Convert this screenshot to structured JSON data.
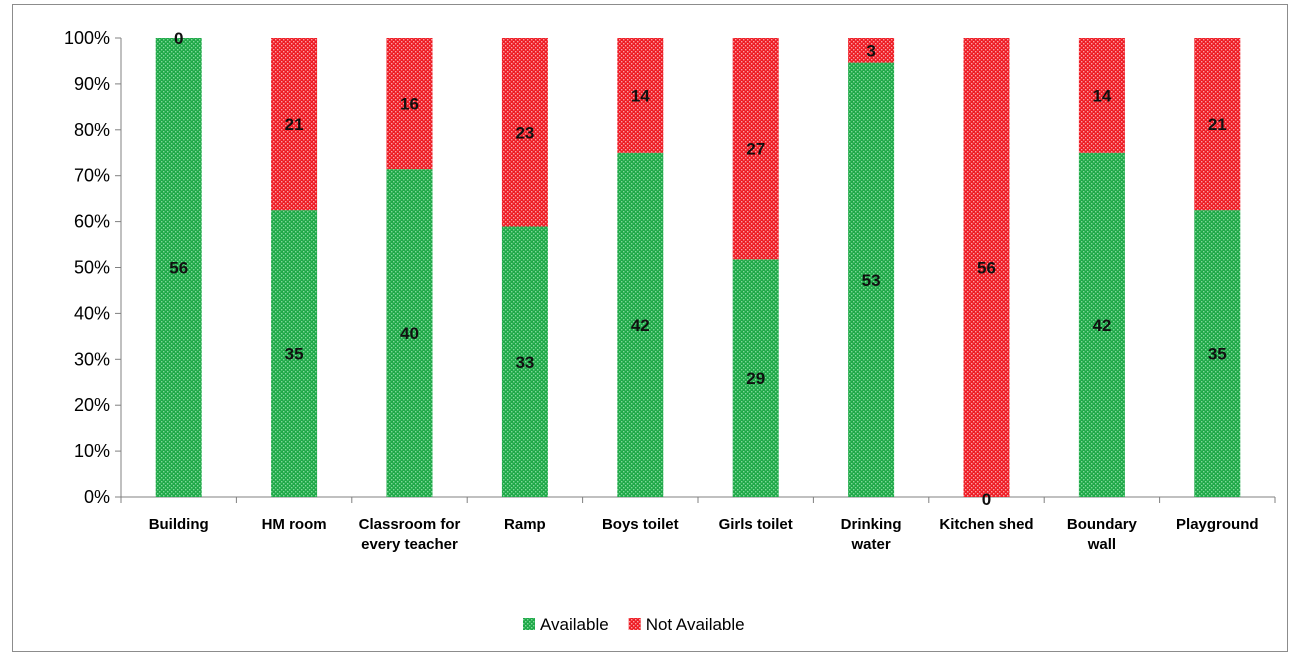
{
  "chart_data": {
    "type": "bar",
    "stacked": "percent",
    "categories": [
      [
        "Building"
      ],
      [
        "HM room"
      ],
      [
        "Classroom for",
        "every teacher"
      ],
      [
        "Ramp"
      ],
      [
        "Boys toilet"
      ],
      [
        "Girls  toilet"
      ],
      [
        "Drinking",
        "water"
      ],
      [
        "Kitchen shed"
      ],
      [
        "Boundary",
        "wall"
      ],
      [
        "Playground"
      ]
    ],
    "series": [
      {
        "name": "Available",
        "color": "#22b14c",
        "values": [
          56,
          35,
          40,
          33,
          42,
          29,
          53,
          0,
          42,
          35
        ]
      },
      {
        "name": "Not Available",
        "color": "#ee1c24",
        "values": [
          0,
          21,
          16,
          23,
          14,
          27,
          3,
          56,
          14,
          21
        ]
      }
    ],
    "yticks": [
      "0%",
      "10%",
      "20%",
      "30%",
      "40%",
      "50%",
      "60%",
      "70%",
      "80%",
      "90%",
      "100%"
    ],
    "ylim": [
      0,
      100
    ],
    "title": "",
    "xlabel": "",
    "ylabel": "",
    "grid": false,
    "legend": "bottom-center"
  }
}
